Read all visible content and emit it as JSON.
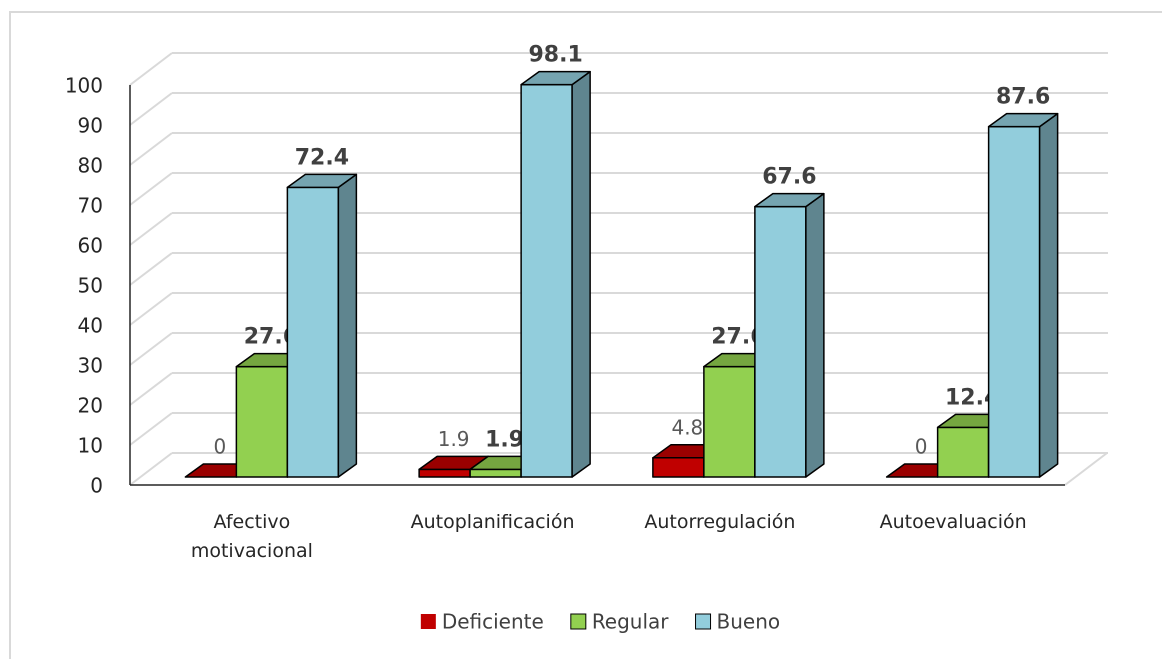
{
  "chart_data": {
    "type": "bar3d",
    "categories": [
      "Afectivo motivacional",
      "Autoplanificación",
      "Autorregulación",
      "Autoevaluación"
    ],
    "series": [
      {
        "name": "Deficiente",
        "color": "#c00000",
        "values": [
          0,
          1.9,
          4.8,
          0
        ]
      },
      {
        "name": "Regular",
        "color": "#92d050",
        "values": [
          27.6,
          1.9,
          27.6,
          12.4
        ]
      },
      {
        "name": "Bueno",
        "color": "#92cddc",
        "values": [
          72.4,
          98.1,
          67.6,
          87.6
        ]
      }
    ],
    "ylim": [
      0,
      100
    ],
    "yticks": [
      0,
      10,
      20,
      30,
      40,
      50,
      60,
      70,
      80,
      90,
      100
    ],
    "grid": true,
    "legend": "bottom"
  }
}
